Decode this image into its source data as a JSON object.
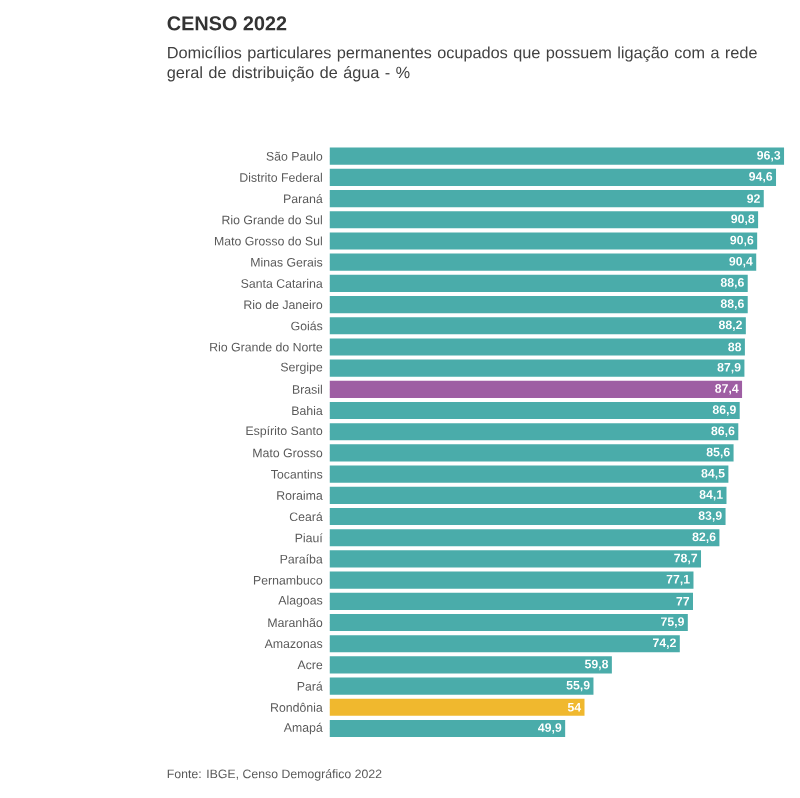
{
  "chart_data": {
    "type": "bar",
    "orientation": "horizontal",
    "title": "CENSO 2022",
    "subtitle": "Domicílios particulares permanentes ocupados que possuem ligação com a rede geral de distribuição de água - %",
    "categories": [
      "São Paulo",
      "Distrito Federal",
      "Paraná",
      "Rio Grande do Sul",
      "Mato Grosso do Sul",
      "Minas Gerais",
      "Santa Catarina",
      "Rio de Janeiro",
      "Goiás",
      "Rio Grande do Norte",
      "Sergipe",
      "Brasil",
      "Bahia",
      "Espírito Santo",
      "Mato Grosso",
      "Tocantins",
      "Roraima",
      "Ceará",
      "Piauí",
      "Paraíba",
      "Pernambuco",
      "Alagoas",
      "Maranhão",
      "Amazonas",
      "Acre",
      "Pará",
      "Rondônia",
      "Amapá"
    ],
    "values": [
      96.3,
      94.6,
      92,
      90.8,
      90.6,
      90.4,
      88.6,
      88.6,
      88.2,
      88,
      87.9,
      87.4,
      86.9,
      86.6,
      85.6,
      84.5,
      84.1,
      83.9,
      82.6,
      78.7,
      77.1,
      77,
      75.9,
      74.2,
      59.8,
      55.9,
      54,
      49.9
    ],
    "value_labels": [
      "96,3",
      "94,6",
      "92",
      "90,8",
      "90,6",
      "90,4",
      "88,6",
      "88,6",
      "88,2",
      "88",
      "87,9",
      "87,4",
      "86,9",
      "86,6",
      "85,6",
      "84,5",
      "84,1",
      "83,9",
      "82,6",
      "78,7",
      "77,1",
      "77",
      "75,9",
      "74,2",
      "59,8",
      "55,9",
      "54",
      "49,9"
    ],
    "colors": [
      "#4aacaa",
      "#4aacaa",
      "#4aacaa",
      "#4aacaa",
      "#4aacaa",
      "#4aacaa",
      "#4aacaa",
      "#4aacaa",
      "#4aacaa",
      "#4aacaa",
      "#4aacaa",
      "#9e5ea3",
      "#4aacaa",
      "#4aacaa",
      "#4aacaa",
      "#4aacaa",
      "#4aacaa",
      "#4aacaa",
      "#4aacaa",
      "#4aacaa",
      "#4aacaa",
      "#4aacaa",
      "#4aacaa",
      "#4aacaa",
      "#4aacaa",
      "#4aacaa",
      "#f0b82e",
      "#4aacaa"
    ],
    "annotations": [
      "Fonte: IBGE, Censo Demográfico 2022"
    ]
  }
}
